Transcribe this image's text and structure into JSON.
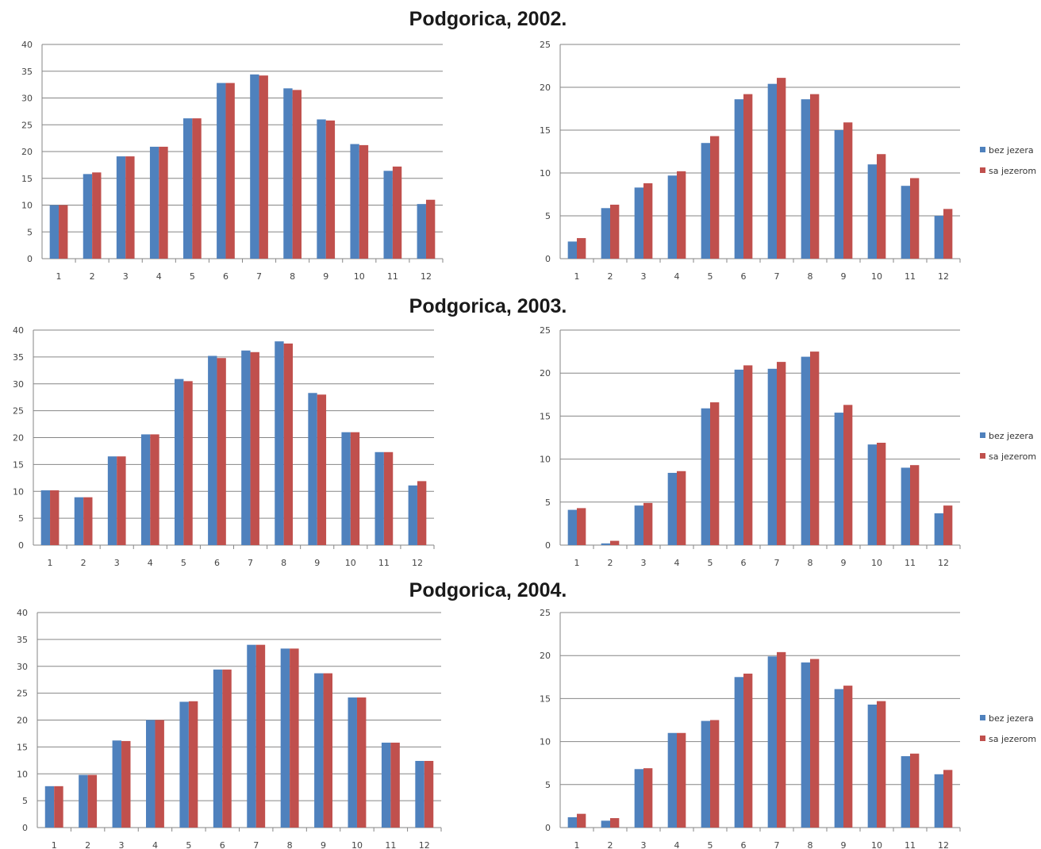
{
  "titles": [
    "Podgorica, 2002.",
    "Podgorica, 2003.",
    "Podgorica, 2004."
  ],
  "colors": {
    "bez_jezera": "#4F81BD",
    "sa_jezerom": "#C0504D",
    "grid": "#868686",
    "axis": "#868686"
  },
  "chart_data": [
    {
      "type": "bar",
      "group": "Podgorica, 2002.",
      "categories": [
        "1",
        "2",
        "3",
        "4",
        "5",
        "6",
        "7",
        "8",
        "9",
        "10",
        "11",
        "12"
      ],
      "ylim": [
        0,
        40
      ],
      "yticks": [
        "0",
        "5",
        "10",
        "15",
        "20",
        "25",
        "30",
        "35",
        "40"
      ],
      "legend": false,
      "series": [
        {
          "values": [
            10,
            15.8,
            19.1,
            20.9,
            26.2,
            32.8,
            34.4,
            31.8,
            26,
            21.4,
            16.4,
            10.2
          ]
        },
        {
          "values": [
            10,
            16.1,
            19.1,
            20.9,
            26.2,
            32.8,
            34.2,
            31.5,
            25.8,
            21.2,
            17.2,
            11
          ]
        }
      ]
    },
    {
      "type": "bar",
      "group": "Podgorica, 2002.",
      "categories": [
        "1",
        "2",
        "3",
        "4",
        "5",
        "6",
        "7",
        "8",
        "9",
        "10",
        "11",
        "12"
      ],
      "ylim": [
        0,
        25
      ],
      "yticks": [
        "0",
        "5",
        "10",
        "15",
        "20",
        "25"
      ],
      "legend": true,
      "legend_position": "right",
      "series": [
        {
          "name": "bez jezera",
          "values": [
            2,
            5.9,
            8.3,
            9.7,
            13.5,
            18.6,
            20.4,
            18.6,
            15,
            11,
            8.5,
            5
          ]
        },
        {
          "name": "sa jezerom",
          "values": [
            2.4,
            6.3,
            8.8,
            10.2,
            14.3,
            19.2,
            21.1,
            19.2,
            15.9,
            12.2,
            9.4,
            5.8
          ]
        }
      ]
    },
    {
      "type": "bar",
      "group": "Podgorica, 2003.",
      "categories": [
        "1",
        "2",
        "3",
        "4",
        "5",
        "6",
        "7",
        "8",
        "9",
        "10",
        "11",
        "12"
      ],
      "ylim": [
        0,
        40
      ],
      "yticks": [
        "0",
        "5",
        "10",
        "15",
        "20",
        "25",
        "30",
        "35",
        "40"
      ],
      "legend": false,
      "series": [
        {
          "values": [
            10.2,
            8.9,
            16.5,
            20.6,
            30.9,
            35.2,
            36.2,
            37.9,
            28.3,
            21,
            17.3,
            11.1
          ]
        },
        {
          "values": [
            10.2,
            8.9,
            16.5,
            20.6,
            30.5,
            34.8,
            35.9,
            37.5,
            28,
            21,
            17.3,
            11.9
          ]
        }
      ]
    },
    {
      "type": "bar",
      "group": "Podgorica, 2003.",
      "categories": [
        "1",
        "2",
        "3",
        "4",
        "5",
        "6",
        "7",
        "8",
        "9",
        "10",
        "11",
        "12"
      ],
      "ylim": [
        0,
        25
      ],
      "yticks": [
        "0",
        "5",
        "10",
        "15",
        "20",
        "25"
      ],
      "legend": true,
      "legend_position": "right",
      "series": [
        {
          "name": "bez jezera",
          "values": [
            4.1,
            0.2,
            4.6,
            8.4,
            15.9,
            20.4,
            20.5,
            21.9,
            15.4,
            11.7,
            9,
            3.7
          ]
        },
        {
          "name": "sa jezerom",
          "values": [
            4.3,
            0.5,
            4.9,
            8.6,
            16.6,
            20.9,
            21.3,
            22.5,
            16.3,
            11.9,
            9.3,
            4.6
          ]
        }
      ]
    },
    {
      "type": "bar",
      "group": "Podgorica, 2004.",
      "categories": [
        "1",
        "2",
        "3",
        "4",
        "5",
        "6",
        "7",
        "8",
        "9",
        "10",
        "11",
        "12"
      ],
      "ylim": [
        0,
        40
      ],
      "yticks": [
        "0",
        "5",
        "10",
        "15",
        "20",
        "25",
        "30",
        "35",
        "40"
      ],
      "legend": false,
      "series": [
        {
          "values": [
            7.7,
            9.8,
            16.2,
            20,
            23.4,
            29.4,
            34,
            33.3,
            28.7,
            24.2,
            15.8,
            12.4
          ]
        },
        {
          "values": [
            7.7,
            9.8,
            16.1,
            20,
            23.5,
            29.4,
            34,
            33.3,
            28.7,
            24.2,
            15.8,
            12.4
          ]
        }
      ]
    },
    {
      "type": "bar",
      "group": "Podgorica, 2004.",
      "categories": [
        "1",
        "2",
        "3",
        "4",
        "5",
        "6",
        "7",
        "8",
        "9",
        "10",
        "11",
        "12"
      ],
      "ylim": [
        0,
        25
      ],
      "yticks": [
        "0",
        "5",
        "10",
        "15",
        "20",
        "25"
      ],
      "legend": true,
      "legend_position": "right",
      "series": [
        {
          "name": "bez jezera",
          "values": [
            1.2,
            0.8,
            6.8,
            11,
            12.4,
            17.5,
            19.9,
            19.2,
            16.1,
            14.3,
            8.3,
            6.2
          ]
        },
        {
          "name": "sa jezerom",
          "values": [
            1.6,
            1.1,
            6.9,
            11,
            12.5,
            17.9,
            20.4,
            19.6,
            16.5,
            14.7,
            8.6,
            6.7
          ]
        }
      ]
    }
  ]
}
